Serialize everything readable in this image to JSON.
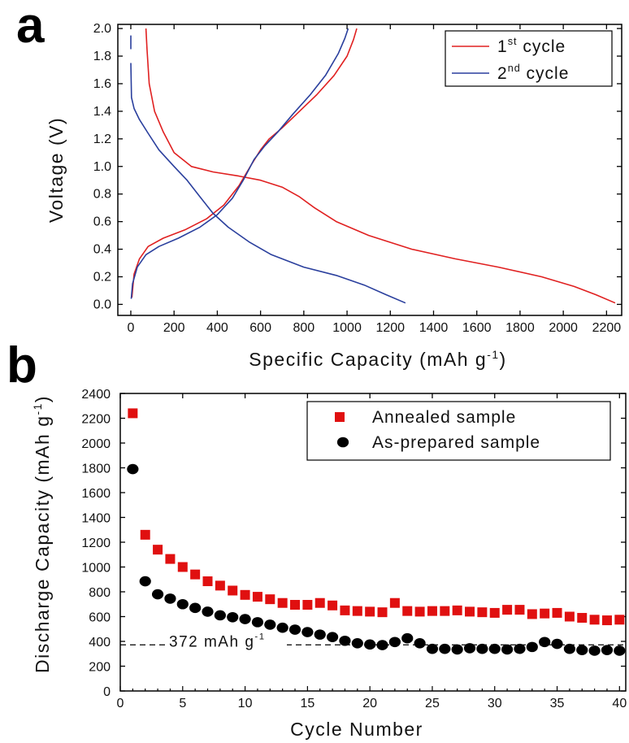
{
  "panel_a_letter": "a",
  "panel_b_letter": "b",
  "chart_data": [
    {
      "panel": "a",
      "type": "line",
      "xlabel_main": "Specific Capacity (mAh g",
      "xlabel_sup": "-1",
      "xlabel_end": ")",
      "ylabel": "Voltage (V)",
      "xlim": [
        0,
        2250
      ],
      "ylim": [
        0,
        2.0
      ],
      "xticks": [
        0,
        200,
        400,
        600,
        800,
        1000,
        1200,
        1400,
        1600,
        1800,
        2000,
        2200
      ],
      "yticks": [
        0.0,
        0.2,
        0.4,
        0.6,
        0.8,
        1.0,
        1.2,
        1.4,
        1.6,
        1.8,
        2.0
      ],
      "ytick_labels": [
        "0.0",
        "0.2",
        "0.4",
        "0.6",
        "0.8",
        "1.0",
        "1.2",
        "1.4",
        "1.6",
        "1.8",
        "2.0"
      ],
      "legend_position": "top-right",
      "series": [
        {
          "name_base": "1",
          "name_sup": "st",
          "name_rest": "cycle",
          "color": "#e02020",
          "segments": [
            [
              [
                70,
                2.0
              ],
              [
                75,
                1.85
              ],
              [
                85,
                1.6
              ],
              [
                110,
                1.4
              ],
              [
                150,
                1.25
              ],
              [
                200,
                1.1
              ],
              [
                280,
                1.0
              ],
              [
                380,
                0.96
              ],
              [
                500,
                0.93
              ],
              [
                600,
                0.9
              ],
              [
                700,
                0.85
              ],
              [
                780,
                0.78
              ],
              [
                850,
                0.7
              ],
              [
                950,
                0.6
              ],
              [
                1100,
                0.5
              ],
              [
                1300,
                0.4
              ],
              [
                1500,
                0.33
              ],
              [
                1700,
                0.27
              ],
              [
                1900,
                0.2
              ],
              [
                2050,
                0.13
              ],
              [
                2150,
                0.07
              ],
              [
                2240,
                0.01
              ]
            ],
            [
              [
                5,
                0.05
              ],
              [
                15,
                0.22
              ],
              [
                40,
                0.33
              ],
              [
                80,
                0.42
              ],
              [
                150,
                0.48
              ],
              [
                250,
                0.54
              ],
              [
                350,
                0.62
              ],
              [
                430,
                0.72
              ],
              [
                500,
                0.86
              ],
              [
                560,
                1.02
              ],
              [
                600,
                1.12
              ],
              [
                640,
                1.2
              ],
              [
                700,
                1.28
              ],
              [
                780,
                1.4
              ],
              [
                860,
                1.52
              ],
              [
                940,
                1.66
              ],
              [
                1000,
                1.8
              ],
              [
                1030,
                1.92
              ],
              [
                1045,
                2.0
              ]
            ]
          ]
        },
        {
          "name_base": "2",
          "name_sup": "nd",
          "name_rest": "cycle",
          "color": "#2a3f9d",
          "segments": [
            [
              [
                0,
                1.95
              ],
              [
                0,
                1.85
              ]
            ],
            [
              [
                0,
                1.75
              ],
              [
                3,
                1.5
              ],
              [
                15,
                1.42
              ],
              [
                40,
                1.34
              ],
              [
                80,
                1.24
              ],
              [
                130,
                1.12
              ],
              [
                200,
                1.0
              ],
              [
                260,
                0.9
              ],
              [
                320,
                0.78
              ],
              [
                380,
                0.66
              ],
              [
                450,
                0.56
              ],
              [
                550,
                0.45
              ],
              [
                650,
                0.36
              ],
              [
                800,
                0.27
              ],
              [
                950,
                0.21
              ],
              [
                1080,
                0.14
              ],
              [
                1180,
                0.07
              ],
              [
                1270,
                0.01
              ]
            ],
            [
              [
                2,
                0.04
              ],
              [
                8,
                0.15
              ],
              [
                30,
                0.27
              ],
              [
                70,
                0.36
              ],
              [
                130,
                0.42
              ],
              [
                220,
                0.48
              ],
              [
                320,
                0.56
              ],
              [
                400,
                0.65
              ],
              [
                470,
                0.77
              ],
              [
                520,
                0.9
              ],
              [
                570,
                1.05
              ],
              [
                620,
                1.15
              ],
              [
                680,
                1.25
              ],
              [
                750,
                1.38
              ],
              [
                830,
                1.52
              ],
              [
                900,
                1.66
              ],
              [
                960,
                1.82
              ],
              [
                990,
                1.93
              ],
              [
                1005,
                2.0
              ]
            ]
          ]
        }
      ]
    },
    {
      "panel": "b",
      "type": "scatter",
      "xlabel": "Cycle Number",
      "ylabel_main": "Discharge Capacity (mAh g",
      "ylabel_sup": "-1",
      "ylabel_end": ")",
      "xlim": [
        0,
        40
      ],
      "ylim": [
        0,
        2400
      ],
      "xticks": [
        0,
        5,
        10,
        15,
        20,
        25,
        30,
        35,
        40
      ],
      "yticks": [
        0,
        200,
        400,
        600,
        800,
        1000,
        1200,
        1400,
        1600,
        1800,
        2000,
        2200,
        2400
      ],
      "legend_position": "top-right",
      "reference_line": {
        "y": 372,
        "label_main": "372 mAh g",
        "label_sup": "-1"
      },
      "x": [
        1,
        2,
        3,
        4,
        5,
        6,
        7,
        8,
        9,
        10,
        11,
        12,
        13,
        14,
        15,
        16,
        17,
        18,
        19,
        20,
        21,
        22,
        23,
        24,
        25,
        26,
        27,
        28,
        29,
        30,
        31,
        32,
        33,
        34,
        35,
        36,
        37,
        38,
        39,
        40
      ],
      "series": [
        {
          "name": "Annealed sample",
          "marker": "square",
          "color": "#e01010",
          "values": [
            2240,
            1260,
            1140,
            1065,
            1000,
            940,
            885,
            850,
            810,
            775,
            760,
            740,
            710,
            695,
            695,
            710,
            690,
            650,
            645,
            640,
            635,
            710,
            645,
            640,
            645,
            645,
            650,
            640,
            635,
            630,
            655,
            655,
            620,
            625,
            630,
            600,
            590,
            575,
            570,
            575
          ]
        },
        {
          "name": "As-prepared sample",
          "marker": "circle",
          "color": "#000000",
          "values": [
            1790,
            885,
            780,
            745,
            700,
            670,
            640,
            610,
            595,
            580,
            555,
            535,
            510,
            495,
            475,
            455,
            435,
            405,
            385,
            375,
            370,
            395,
            425,
            385,
            340,
            340,
            335,
            345,
            340,
            340,
            335,
            340,
            355,
            395,
            380,
            340,
            330,
            325,
            330,
            325
          ]
        }
      ]
    }
  ]
}
